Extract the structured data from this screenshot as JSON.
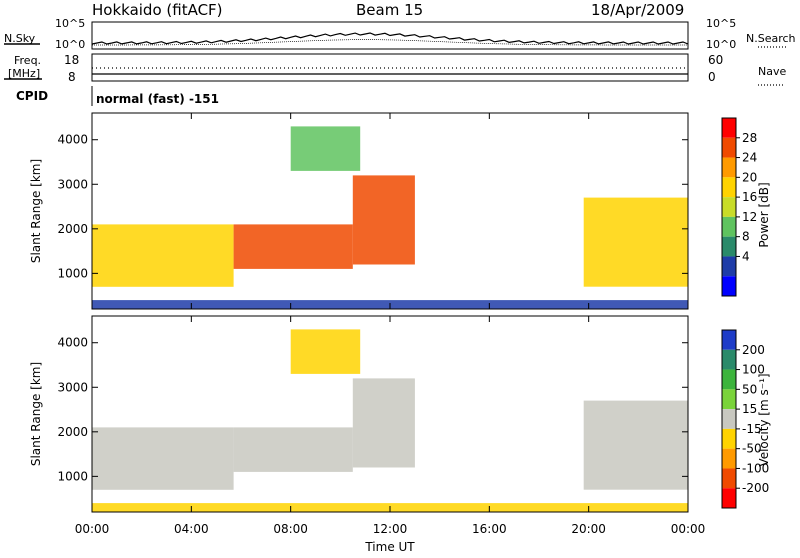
{
  "header": {
    "station": "Hokkaido (fitACF)",
    "beam": "Beam 15",
    "date": "18/Apr/2009"
  },
  "noise_panel": {
    "left_label": "N.Sky",
    "right_label": "N.Search",
    "left_ticks": [
      "10^5",
      "10^0"
    ],
    "right_ticks": [
      "10^5",
      "10^0"
    ]
  },
  "freq_panel": {
    "left_label_line1": "Freq.",
    "left_label_line2": "[MHz]",
    "left_ticks": [
      "18",
      "8"
    ],
    "right_label": "Nave",
    "right_ticks": [
      "60",
      "0"
    ]
  },
  "cpid_panel": {
    "label": "CPID",
    "text": "normal (fast) -151"
  },
  "power_panel": {
    "ylabel": "Slant Range [km]",
    "colorbar_label": "Power [dB]",
    "colorbar_ticks": [
      "28",
      "24",
      "20",
      "16",
      "12",
      "8",
      "4"
    ],
    "colors": [
      "#ff0000",
      "#f04a00",
      "#ff9a00",
      "#ffd300",
      "#c8dc28",
      "#5fc35f",
      "#2a8a6a",
      "#1e3ca8",
      "#0000ff"
    ]
  },
  "velocity_panel": {
    "ylabel": "Slant Range [km]",
    "colorbar_label": "Velocity [m s⁻¹]",
    "colorbar_ticks": [
      "200",
      "100",
      "50",
      "15",
      "-15",
      "-50",
      "-100",
      "-200"
    ],
    "colors": [
      "#1e3cc8",
      "#2a8a6a",
      "#3cb43c",
      "#7ad33a",
      "#c8c8c0",
      "#ffd300",
      "#ff9a00",
      "#f04a00",
      "#ff0000"
    ]
  },
  "time_axis": {
    "label": "Time UT",
    "ticks": [
      "00:00",
      "04:00",
      "08:00",
      "12:00",
      "16:00",
      "20:00",
      "00:00"
    ]
  },
  "chart_data": [
    {
      "type": "heatmap",
      "title": "Power [dB]",
      "xlabel": "Time UT",
      "ylabel": "Slant Range [km]",
      "xlim": [
        0,
        24
      ],
      "ylim": [
        200,
        4600
      ],
      "y_ticks": [
        1000,
        2000,
        3000,
        4000
      ],
      "color_scale": [
        4,
        28
      ],
      "bands": [
        {
          "x": [
            0.0,
            5.7
          ],
          "y": [
            700,
            2100
          ],
          "value": 18
        },
        {
          "x": [
            5.7,
            10.5
          ],
          "y": [
            1100,
            2100
          ],
          "value": 26
        },
        {
          "x": [
            10.5,
            13.0
          ],
          "y": [
            1200,
            3200
          ],
          "value": 24
        },
        {
          "x": [
            19.8,
            24.0
          ],
          "y": [
            700,
            2700
          ],
          "value": 20
        },
        {
          "x": [
            8.0,
            10.8
          ],
          "y": [
            3300,
            4300
          ],
          "value": 14
        },
        {
          "x": [
            0.0,
            24.0
          ],
          "y": [
            200,
            400
          ],
          "value": 6
        }
      ]
    },
    {
      "type": "heatmap",
      "title": "Velocity [m s⁻¹]",
      "xlabel": "Time UT",
      "ylabel": "Slant Range [km]",
      "xlim": [
        0,
        24
      ],
      "ylim": [
        200,
        4600
      ],
      "y_ticks": [
        1000,
        2000,
        3000,
        4000
      ],
      "color_scale": [
        -200,
        200
      ],
      "bands": [
        {
          "x": [
            0.0,
            5.7
          ],
          "y": [
            700,
            2100
          ],
          "value": 0
        },
        {
          "x": [
            5.7,
            10.5
          ],
          "y": [
            1100,
            2100
          ],
          "value": 0
        },
        {
          "x": [
            10.5,
            13.0
          ],
          "y": [
            1200,
            3200
          ],
          "value": 0
        },
        {
          "x": [
            19.8,
            24.0
          ],
          "y": [
            700,
            2700
          ],
          "value": 0
        },
        {
          "x": [
            8.0,
            10.8
          ],
          "y": [
            3300,
            4300
          ],
          "value": -40
        },
        {
          "x": [
            0.0,
            24.0
          ],
          "y": [
            200,
            400
          ],
          "value": -30
        }
      ]
    }
  ]
}
